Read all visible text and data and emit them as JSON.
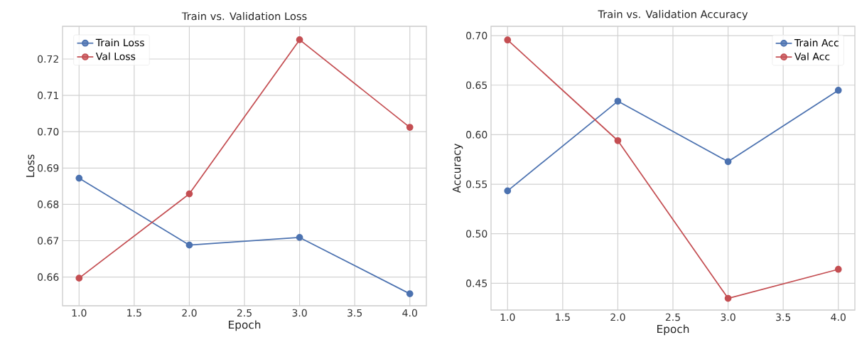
{
  "chart_data": [
    {
      "type": "line",
      "title": "Train vs. Validation Loss",
      "xlabel": "Epoch",
      "ylabel": "Loss",
      "x": [
        1,
        2,
        3,
        4
      ],
      "series": [
        {
          "name": "Train Loss",
          "color": "#4c72b0",
          "values": [
            0.6872,
            0.6688,
            0.6709,
            0.6554
          ]
        },
        {
          "name": "Val Loss",
          "color": "#c44e52",
          "values": [
            0.6597,
            0.6829,
            0.7253,
            0.7012
          ]
        }
      ],
      "xlim": [
        0.85,
        4.15
      ],
      "ylim": [
        0.6521,
        0.729
      ],
      "xticks": [
        {
          "value": 1,
          "label": "1.0"
        },
        1.5,
        {
          "value": 2,
          "label": "2.0"
        },
        2.5,
        {
          "value": 3,
          "label": "3.0"
        },
        3.5,
        {
          "value": 4,
          "label": "4.0"
        }
      ],
      "yticks": [
        0.66,
        0.67,
        {
          "value": 0.68,
          "label": "0.68"
        },
        0.69,
        {
          "value": 0.7,
          "label": "0.70"
        },
        0.71,
        0.72
      ],
      "grid": true,
      "legend": "top left",
      "marker": "circle",
      "line_style": "solid"
    },
    {
      "type": "line",
      "title": "Train vs. Validation Accuracy",
      "xlabel": "Epoch",
      "ylabel": "Accuracy",
      "x": [
        1,
        2,
        3,
        4
      ],
      "series": [
        {
          "name": "Train Acc",
          "color": "#4c72b0",
          "values": [
            0.5433,
            0.6338,
            0.5728,
            0.6448
          ]
        },
        {
          "name": "Val Acc",
          "color": "#c44e52",
          "values": [
            0.6956,
            0.594,
            0.4348,
            0.4641
          ]
        }
      ],
      "xlim": [
        0.85,
        4.15
      ],
      "ylim": [
        0.423,
        0.7094
      ],
      "xticks": [
        {
          "value": 1,
          "label": "1.0"
        },
        1.5,
        {
          "value": 2,
          "label": "2.0"
        },
        2.5,
        {
          "value": 3,
          "label": "3.0"
        },
        3.5,
        {
          "value": 4,
          "label": "4.0"
        }
      ],
      "yticks": [
        0.45,
        {
          "value": 0.5,
          "label": "0.50"
        },
        0.55,
        {
          "value": 0.6,
          "label": "0.60"
        },
        0.65,
        {
          "value": 0.7,
          "label": "0.70"
        }
      ],
      "grid": true,
      "legend": "top right",
      "marker": "circle",
      "line_style": "solid"
    }
  ]
}
